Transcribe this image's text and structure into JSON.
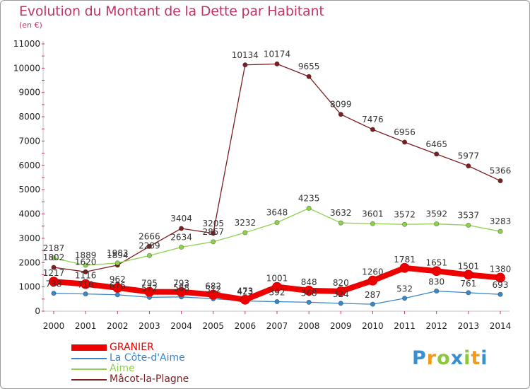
{
  "chart_data": {
    "type": "line",
    "title": "Evolution du Montant de la Dette par Habitant",
    "subtitle": "(en €)",
    "x": [
      "2000",
      "2001",
      "2002",
      "2003",
      "2004",
      "2005",
      "2006",
      "2007",
      "2008",
      "2009",
      "2010",
      "2011",
      "2012",
      "2013",
      "2014"
    ],
    "ylim": [
      0,
      11000
    ],
    "yticks": [
      0,
      1000,
      2000,
      3000,
      4000,
      5000,
      6000,
      7000,
      8000,
      9000,
      10000,
      11000
    ],
    "grid": false,
    "legend_position": "bottom-left",
    "series": [
      {
        "name": "GRANIER",
        "color": "#ee0000",
        "values": [
          1217,
          1116,
          962,
          795,
          793,
          682,
          473,
          1001,
          848,
          820,
          1260,
          1781,
          1651,
          1501,
          1380
        ]
      },
      {
        "name": "La Côte-d'Aime",
        "color": "#3b86c8",
        "values": [
          738,
          710,
          676,
          572,
          588,
          512,
          423,
          392,
          368,
          324,
          287,
          532,
          830,
          761,
          693
        ]
      },
      {
        "name": "Aime",
        "color": "#8fd14f",
        "values": [
          2187,
          1889,
          1983,
          2289,
          2634,
          2857,
          3232,
          3648,
          4235,
          3632,
          3601,
          3572,
          3592,
          3537,
          3283
        ]
      },
      {
        "name": "Mâcot-la-Plagne",
        "color": "#7a1f22",
        "values": [
          1802,
          1620,
          1894,
          2666,
          3404,
          3205,
          10134,
          10174,
          9655,
          8099,
          7476,
          6956,
          6465,
          5977,
          5366
        ]
      }
    ]
  },
  "logo": {
    "letters": [
      "P",
      "r",
      "o",
      "x",
      "i",
      "t",
      "i"
    ],
    "colors": [
      "#3a8fd0",
      "#f29a1a",
      "#8cc63f",
      "#3a8fd0",
      "#8cc63f",
      "#f29a1a",
      "#3a8fd0"
    ]
  }
}
